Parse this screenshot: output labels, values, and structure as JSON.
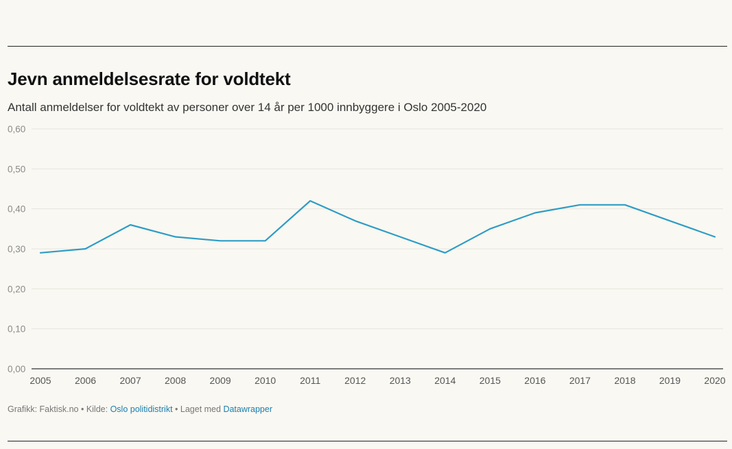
{
  "title": "Jevn anmeldelsesrate for voldtekt",
  "subtitle": "Antall anmeldelser for voldtekt av personer over 14 år per 1000 innbyggere i Oslo 2005-2020",
  "footer": {
    "graphic_prefix": "Grafikk: Faktisk.no • Kilde: ",
    "source_link": "Oslo politidistrikt",
    "made_with_prefix": " • Laget med ",
    "tool_link": "Datawrapper"
  },
  "colors": {
    "line": "#2e9cc6",
    "grid": "#e6e5dd",
    "axis": "#333333",
    "tick_label": "#8a8a8a",
    "x_tick_label": "#555555"
  },
  "chart_data": {
    "type": "line",
    "title": "Jevn anmeldelsesrate for voldtekt",
    "subtitle": "Antall anmeldelser for voldtekt av personer over 14 år per 1000 innbyggere i Oslo 2005-2020",
    "x": [
      "2005",
      "2006",
      "2007",
      "2008",
      "2009",
      "2010",
      "2011",
      "2012",
      "2013",
      "2014",
      "2015",
      "2016",
      "2017",
      "2018",
      "2019",
      "2020"
    ],
    "series": [
      {
        "values": [
          0.29,
          0.3,
          0.36,
          0.33,
          0.32,
          0.32,
          0.42,
          0.37,
          0.33,
          0.29,
          0.35,
          0.39,
          0.41,
          0.41,
          0.37,
          0.33
        ]
      }
    ],
    "ylim": [
      0,
      0.6
    ],
    "yticks": [
      0,
      0.1,
      0.2,
      0.3,
      0.4,
      0.5,
      0.6
    ],
    "ytick_labels": [
      "0,00",
      "0,10",
      "0,20",
      "0,30",
      "0,40",
      "0,50",
      "0,60"
    ],
    "grid": true,
    "legend": "none"
  }
}
